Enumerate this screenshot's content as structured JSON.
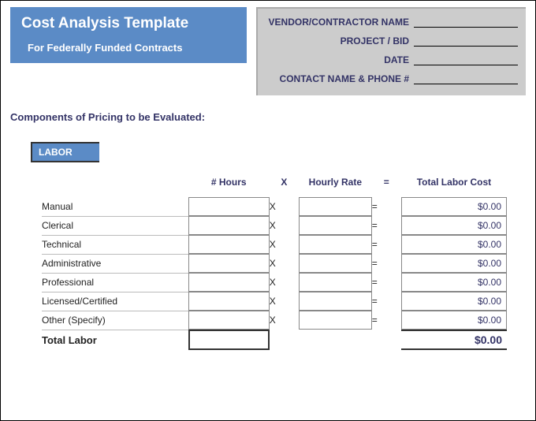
{
  "title": {
    "main": "Cost Analysis Template",
    "sub": "For Federally Funded Contracts"
  },
  "info_fields": [
    "VENDOR/CONTRACTOR NAME",
    "PROJECT / BID",
    "DATE",
    "CONTACT NAME & PHONE #"
  ],
  "section_heading": "Components of Pricing to be Evaluated:",
  "labor": {
    "tag": "LABOR",
    "headers": {
      "hours": "# Hours",
      "x": "X",
      "rate": "Hourly Rate",
      "eq": "=",
      "total": "Total Labor Cost"
    },
    "rows": [
      {
        "label": "Manual",
        "total": "$0.00"
      },
      {
        "label": "Clerical",
        "total": "$0.00"
      },
      {
        "label": "Technical",
        "total": "$0.00"
      },
      {
        "label": "Administrative",
        "total": "$0.00"
      },
      {
        "label": "Professional",
        "total": "$0.00"
      },
      {
        "label": "Licensed/Certified",
        "total": "$0.00"
      },
      {
        "label": "Other (Specify)",
        "total": "$0.00"
      }
    ],
    "footer": {
      "label": "Total Labor",
      "total": "$0.00"
    }
  },
  "colors": {
    "header_bg": "#5b8bc6",
    "info_bg": "#cccccc",
    "accent_text": "#333366"
  }
}
